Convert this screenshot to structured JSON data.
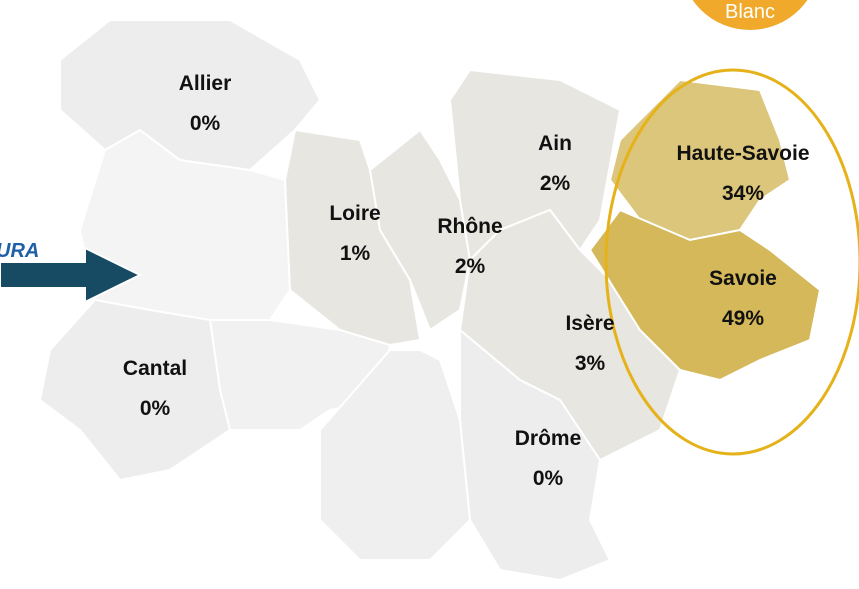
{
  "badge": "Blanc",
  "arrow_label": "URA",
  "departments": [
    {
      "name": "Allier",
      "label": "0%",
      "color": "#ededed"
    },
    {
      "name": "Cantal",
      "label": "0%",
      "color": "#ededed"
    },
    {
      "name": "Loire",
      "label": "1%",
      "color": "#e7e6e1"
    },
    {
      "name": "Rhône",
      "label": "2%",
      "color": "#e7e6e1"
    },
    {
      "name": "Ain",
      "label": "2%",
      "color": "#e7e6e1"
    },
    {
      "name": "Isère",
      "label": "3%",
      "color": "#e7e6e1"
    },
    {
      "name": "Drôme",
      "label": "0%",
      "color": "#ededed"
    },
    {
      "name": "Haute-Savoie",
      "label": "34%",
      "color": "#dcc67b"
    },
    {
      "name": "Savoie",
      "label": "49%",
      "color": "#d4b859"
    }
  ]
}
